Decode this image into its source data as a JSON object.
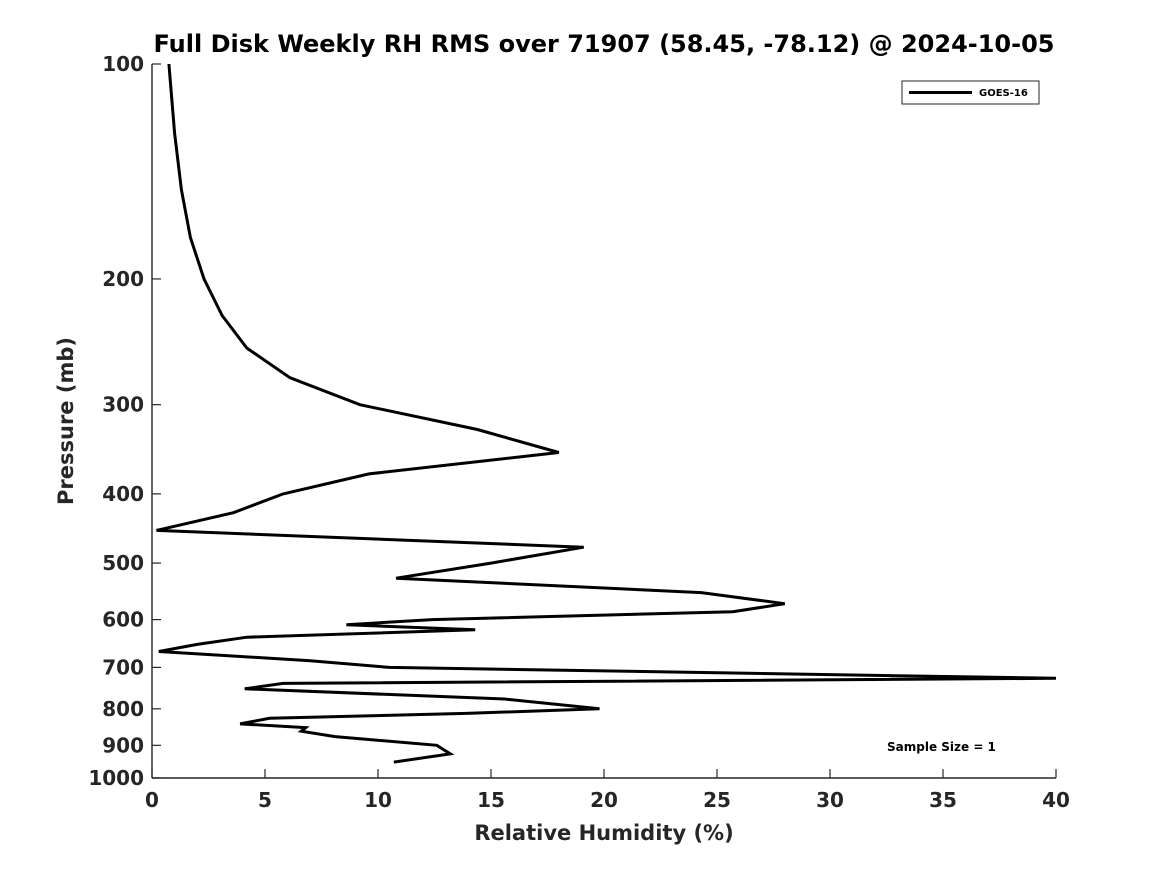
{
  "chart_data": {
    "type": "line",
    "title": "Full Disk Weekly RH RMS over 71907 (58.45, -78.12) @ 2024-10-05",
    "xlabel": "Relative Humidity (%)",
    "ylabel": "Pressure (mb)",
    "xlim": [
      0,
      40
    ],
    "ylim": [
      100,
      1000
    ],
    "y_scale": "log",
    "y_reversed": true,
    "x_ticks": [
      "0",
      "5",
      "10",
      "15",
      "20",
      "25",
      "30",
      "35",
      "40"
    ],
    "y_ticks": [
      "100",
      "200",
      "300",
      "400",
      "500",
      "600",
      "700",
      "800",
      "900",
      "1000"
    ],
    "grid": false,
    "legend_position": "top-right",
    "annotation": "Sample Size = 1",
    "series": [
      {
        "name": "GOES-16",
        "color": "#000000",
        "points": [
          [
            0.75,
            100
          ],
          [
            1.0,
            125
          ],
          [
            1.3,
            150
          ],
          [
            1.7,
            175
          ],
          [
            2.3,
            200
          ],
          [
            3.1,
            225
          ],
          [
            4.2,
            250
          ],
          [
            6.1,
            275
          ],
          [
            9.2,
            300
          ],
          [
            14.4,
            325
          ],
          [
            18.0,
            350
          ],
          [
            9.6,
            375
          ],
          [
            5.8,
            400
          ],
          [
            3.6,
            425
          ],
          [
            0.2,
            450
          ],
          [
            19.1,
            475
          ],
          [
            15.0,
            500
          ],
          [
            10.8,
            525
          ],
          [
            24.3,
            550
          ],
          [
            28.0,
            570
          ],
          [
            25.7,
            585
          ],
          [
            12.4,
            600
          ],
          [
            8.6,
            610
          ],
          [
            14.3,
            620
          ],
          [
            4.2,
            635
          ],
          [
            2.0,
            650
          ],
          [
            0.3,
            665
          ],
          [
            7.0,
            685
          ],
          [
            10.5,
            700
          ],
          [
            40.0,
            725
          ],
          [
            5.8,
            737
          ],
          [
            4.1,
            750
          ],
          [
            15.6,
            775
          ],
          [
            19.8,
            800
          ],
          [
            13.9,
            812
          ],
          [
            5.2,
            825
          ],
          [
            3.9,
            840
          ],
          [
            6.8,
            850
          ],
          [
            6.6,
            860
          ],
          [
            8.1,
            875
          ],
          [
            12.6,
            900
          ],
          [
            13.2,
            925
          ],
          [
            10.7,
            950
          ]
        ]
      }
    ]
  }
}
